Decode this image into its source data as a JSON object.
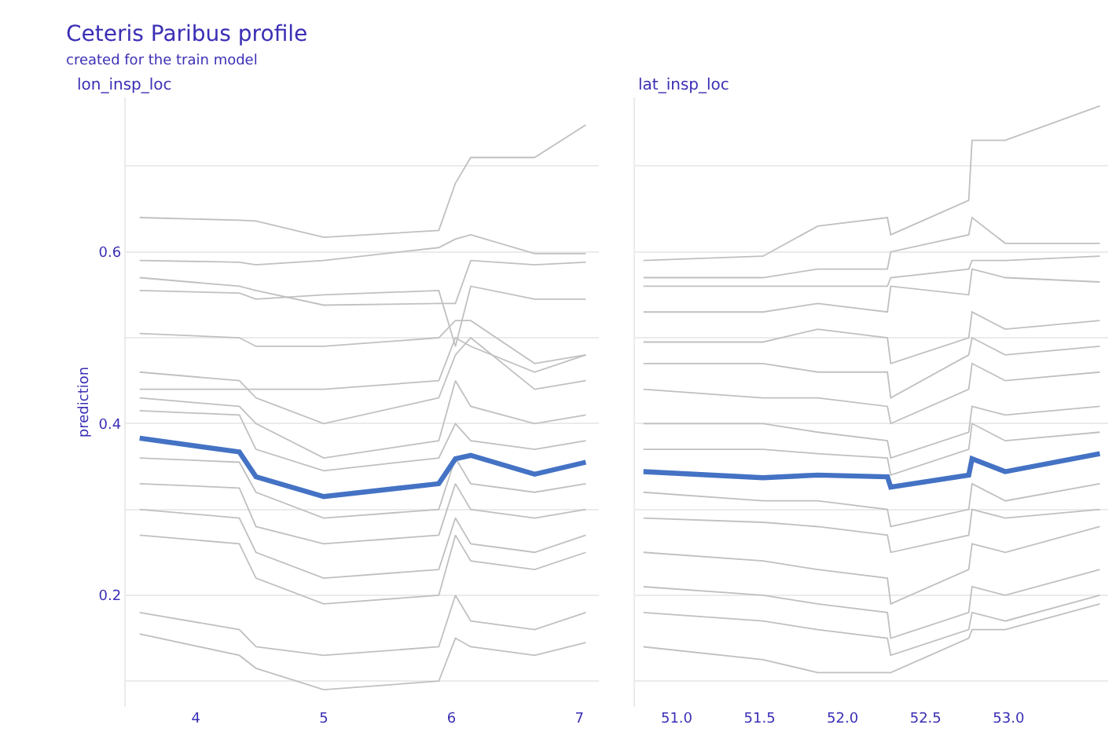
{
  "chart_data": [
    {
      "type": "line",
      "title": "Ceteris Paribus profile",
      "subtitle": "created for the train model",
      "ylabel": "prediction",
      "annotations": [
        "lon_insp_loc"
      ],
      "x": [
        3.56,
        4.34,
        4.47,
        5.0,
        5.9,
        6.03,
        6.15,
        6.65,
        7.05
      ],
      "xlim": [
        3.45,
        7.15
      ],
      "xticks": [
        4,
        5,
        6,
        7
      ],
      "ylim": [
        0.07,
        0.78
      ],
      "yticks": [
        {
          "value": 0.1,
          "label": null
        },
        0.2,
        {
          "value": 0.3,
          "label": null
        },
        0.4,
        {
          "value": 0.5,
          "label": null
        },
        0.6,
        {
          "value": 0.7,
          "label": null
        }
      ],
      "grid": "y",
      "legend": false,
      "marker": "none",
      "line_style": "solid",
      "series": [
        {
          "color": "#c0c0c0",
          "values": [
            0.64,
            0.637,
            0.636,
            0.617,
            0.625,
            0.68,
            0.71,
            0.71,
            0.748
          ]
        },
        {
          "color": "#c0c0c0",
          "values": [
            0.59,
            0.588,
            0.585,
            0.59,
            0.605,
            0.615,
            0.62,
            0.598,
            0.598
          ]
        },
        {
          "color": "#c0c0c0",
          "values": [
            0.57,
            0.56,
            0.555,
            0.538,
            0.54,
            0.54,
            0.59,
            0.585,
            0.588
          ]
        },
        {
          "color": "#c0c0c0",
          "values": [
            0.555,
            0.552,
            0.545,
            0.55,
            0.555,
            0.49,
            0.56,
            0.545,
            0.545
          ]
        },
        {
          "color": "#c0c0c0",
          "values": [
            0.505,
            0.5,
            0.49,
            0.49,
            0.5,
            0.52,
            0.52,
            0.47,
            0.48
          ]
        },
        {
          "color": "#c0c0c0",
          "values": [
            0.44,
            0.44,
            0.44,
            0.44,
            0.45,
            0.5,
            0.49,
            0.46,
            0.48
          ]
        },
        {
          "color": "#c0c0c0",
          "values": [
            0.46,
            0.45,
            0.43,
            0.4,
            0.43,
            0.48,
            0.5,
            0.44,
            0.45
          ]
        },
        {
          "color": "#c0c0c0",
          "values": [
            0.43,
            0.42,
            0.4,
            0.36,
            0.38,
            0.45,
            0.42,
            0.4,
            0.41
          ]
        },
        {
          "color": "#c0c0c0",
          "values": [
            0.415,
            0.41,
            0.37,
            0.345,
            0.36,
            0.4,
            0.38,
            0.37,
            0.38
          ]
        },
        {
          "color": "#c0c0c0",
          "values": [
            0.36,
            0.355,
            0.32,
            0.29,
            0.3,
            0.36,
            0.33,
            0.32,
            0.33
          ]
        },
        {
          "color": "#c0c0c0",
          "values": [
            0.33,
            0.325,
            0.28,
            0.26,
            0.27,
            0.33,
            0.3,
            0.29,
            0.3
          ]
        },
        {
          "color": "#c0c0c0",
          "values": [
            0.3,
            0.29,
            0.25,
            0.22,
            0.23,
            0.29,
            0.26,
            0.25,
            0.27
          ]
        },
        {
          "color": "#c0c0c0",
          "values": [
            0.27,
            0.26,
            0.22,
            0.19,
            0.2,
            0.27,
            0.24,
            0.23,
            0.25
          ]
        },
        {
          "color": "#c0c0c0",
          "values": [
            0.18,
            0.16,
            0.14,
            0.13,
            0.14,
            0.2,
            0.17,
            0.16,
            0.18
          ]
        },
        {
          "color": "#c0c0c0",
          "values": [
            0.155,
            0.13,
            0.115,
            0.09,
            0.1,
            0.15,
            0.14,
            0.13,
            0.145
          ]
        },
        {
          "color": "#4472c4",
          "values": [
            0.383,
            0.367,
            0.338,
            0.315,
            0.33,
            0.359,
            0.363,
            0.341,
            0.355
          ]
        }
      ]
    },
    {
      "type": "line",
      "annotations": [
        "lat_insp_loc"
      ],
      "tick_labels": "x",
      "x": [
        50.8,
        51.52,
        51.85,
        52.27,
        52.29,
        52.76,
        52.78,
        52.98,
        53.55
      ],
      "xlim": [
        50.75,
        53.6
      ],
      "xticks": [
        {
          "value": 51,
          "label": "51.0"
        },
        51.5,
        {
          "value": 52,
          "label": "52.0"
        },
        52.5,
        {
          "value": 53,
          "label": "53.0"
        }
      ],
      "ylim": [
        0.07,
        0.78
      ],
      "yticks": [
        {
          "value": 0.1,
          "label": null
        },
        0.2,
        {
          "value": 0.3,
          "label": null
        },
        0.4,
        {
          "value": 0.5,
          "label": null
        },
        0.6,
        {
          "value": 0.7,
          "label": null
        }
      ],
      "grid": "y",
      "legend": false,
      "marker": "none",
      "line_style": "solid",
      "series": [
        {
          "color": "#c0c0c0",
          "values": [
            0.59,
            0.595,
            0.63,
            0.64,
            0.62,
            0.66,
            0.73,
            0.73,
            0.77
          ]
        },
        {
          "color": "#c0c0c0",
          "values": [
            0.57,
            0.57,
            0.58,
            0.58,
            0.6,
            0.62,
            0.64,
            0.61,
            0.61
          ]
        },
        {
          "color": "#c0c0c0",
          "values": [
            0.56,
            0.56,
            0.56,
            0.56,
            0.57,
            0.58,
            0.59,
            0.59,
            0.595
          ]
        },
        {
          "color": "#c0c0c0",
          "values": [
            0.53,
            0.53,
            0.54,
            0.53,
            0.56,
            0.55,
            0.58,
            0.57,
            0.565
          ]
        },
        {
          "color": "#c0c0c0",
          "values": [
            0.495,
            0.495,
            0.51,
            0.5,
            0.47,
            0.5,
            0.53,
            0.51,
            0.52
          ]
        },
        {
          "color": "#c0c0c0",
          "values": [
            0.47,
            0.47,
            0.46,
            0.46,
            0.43,
            0.48,
            0.5,
            0.48,
            0.49
          ]
        },
        {
          "color": "#c0c0c0",
          "values": [
            0.44,
            0.43,
            0.43,
            0.42,
            0.4,
            0.44,
            0.47,
            0.45,
            0.46
          ]
        },
        {
          "color": "#c0c0c0",
          "values": [
            0.4,
            0.4,
            0.39,
            0.38,
            0.36,
            0.39,
            0.42,
            0.41,
            0.42
          ]
        },
        {
          "color": "#c0c0c0",
          "values": [
            0.37,
            0.37,
            0.365,
            0.36,
            0.34,
            0.37,
            0.4,
            0.38,
            0.39
          ]
        },
        {
          "color": "#c0c0c0",
          "values": [
            0.32,
            0.31,
            0.31,
            0.3,
            0.28,
            0.3,
            0.33,
            0.31,
            0.33
          ]
        },
        {
          "color": "#c0c0c0",
          "values": [
            0.29,
            0.285,
            0.28,
            0.27,
            0.25,
            0.27,
            0.3,
            0.29,
            0.3
          ]
        },
        {
          "color": "#c0c0c0",
          "values": [
            0.25,
            0.24,
            0.23,
            0.22,
            0.19,
            0.23,
            0.26,
            0.25,
            0.28
          ]
        },
        {
          "color": "#c0c0c0",
          "values": [
            0.21,
            0.2,
            0.19,
            0.18,
            0.15,
            0.18,
            0.21,
            0.2,
            0.23
          ]
        },
        {
          "color": "#c0c0c0",
          "values": [
            0.18,
            0.17,
            0.16,
            0.15,
            0.13,
            0.16,
            0.18,
            0.17,
            0.2
          ]
        },
        {
          "color": "#c0c0c0",
          "values": [
            0.14,
            0.125,
            0.11,
            0.11,
            0.11,
            0.15,
            0.16,
            0.16,
            0.19
          ]
        },
        {
          "color": "#4472c4",
          "values": [
            0.344,
            0.337,
            0.34,
            0.338,
            0.326,
            0.34,
            0.359,
            0.344,
            0.365
          ]
        }
      ]
    }
  ]
}
